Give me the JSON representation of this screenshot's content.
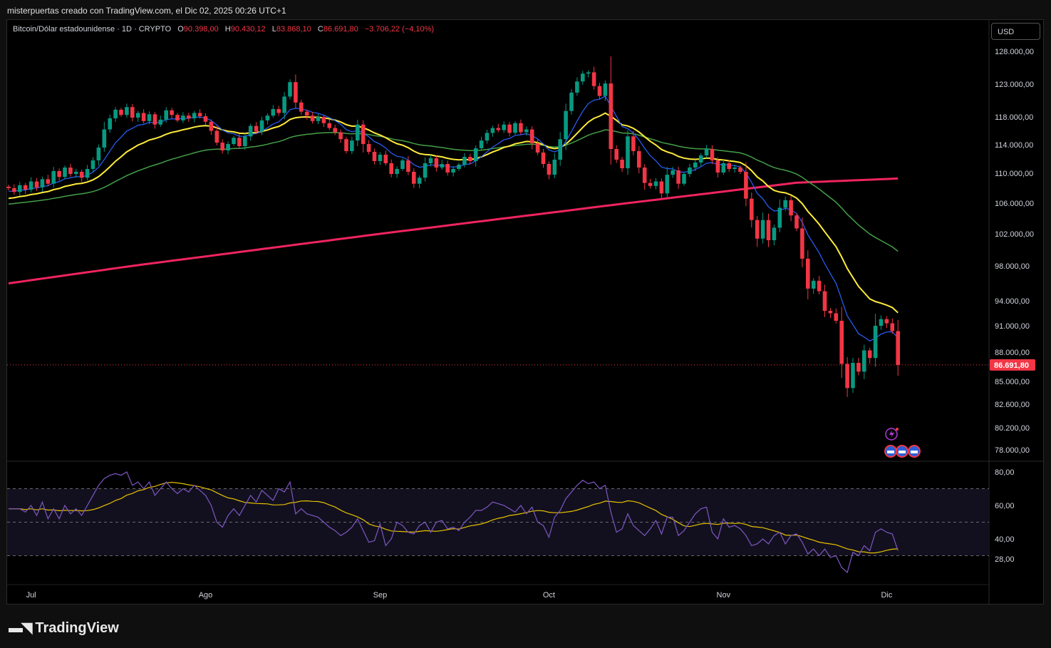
{
  "header": {
    "attribution": "misterpuertas creado con TradingView.com, el Dic 02, 2025 00:26 UTC+1"
  },
  "legend": {
    "symbol": "Bitcoin/Dólar estadounidense · 1D · CRYPTO",
    "o_label": "O",
    "o_value": "90.398,00",
    "h_label": "H",
    "h_value": "90.430,12",
    "l_label": "L",
    "l_value": "83.868,10",
    "c_label": "C",
    "c_value": "86.691,80",
    "change": "−3.706,22 (−4,10%)"
  },
  "currency_button": "USD",
  "brand": {
    "name": "TradingView",
    "logo_icon": "tradingview-logo-icon"
  },
  "colors": {
    "up": "#089981",
    "down": "#f23645",
    "ema_fast": "#2962ff",
    "ema_mid": "#ffeb3b",
    "ema_slow": "#43a047",
    "ema_200": "#f0245f",
    "rsi": "#7e57c2",
    "rsi_ma": "#e6c000"
  },
  "chart_data": [
    {
      "type": "candlestick",
      "title": "Bitcoin/Dólar estadounidense · 1D · CRYPTO",
      "price_axis_ticks": [
        "128.000,00",
        "123.000,00",
        "118.000,00",
        "114.000,00",
        "110.000,00",
        "106.000,00",
        "102.000,00",
        "98.000,00",
        "94.000,00",
        "91.000,00",
        "88.000,00",
        "85.000,00",
        "82.600,00",
        "80.200,00",
        "78.000,00"
      ],
      "price_tick_values": [
        128000,
        123000,
        118000,
        114000,
        110000,
        106000,
        102000,
        98000,
        94000,
        91000,
        88000,
        85000,
        82600,
        80200,
        78000
      ],
      "time_axis_ticks": [
        "Jul",
        "Ago",
        "Sep",
        "Oct",
        "Nov",
        "Dic"
      ],
      "time_tick_index": [
        4,
        35,
        66,
        96,
        127,
        156
      ],
      "last_price_label": "86.691,80",
      "last_price": 86691.8,
      "closes": [
        108000,
        107500,
        108400,
        107800,
        108900,
        108100,
        109200,
        108600,
        110300,
        109500,
        110800,
        109900,
        110200,
        109400,
        110600,
        111800,
        113600,
        116200,
        117800,
        119100,
        118300,
        119500,
        117900,
        118600,
        117400,
        118400,
        116900,
        117600,
        119000,
        118300,
        117500,
        118200,
        117800,
        118600,
        118100,
        117300,
        116000,
        114300,
        113200,
        114100,
        115000,
        113800,
        115200,
        116700,
        115900,
        117500,
        118200,
        119200,
        118600,
        121100,
        123300,
        120200,
        118800,
        118200,
        117400,
        118000,
        117100,
        116400,
        115800,
        114800,
        113100,
        114600,
        116900,
        114100,
        113000,
        111700,
        112600,
        111400,
        109900,
        110600,
        111800,
        110200,
        108600,
        109400,
        111400,
        112100,
        110800,
        111300,
        110100,
        110600,
        111200,
        112300,
        111700,
        113500,
        114600,
        115700,
        116400,
        116100,
        116900,
        115700,
        117100,
        115800,
        116200,
        114200,
        112900,
        111300,
        109800,
        111900,
        114800,
        118900,
        121700,
        123400,
        124600,
        124800,
        122700,
        121200,
        123100,
        113400,
        111900,
        110700,
        115200,
        113100,
        110800,
        108700,
        108300,
        108900,
        107300,
        109800,
        110400,
        108600,
        109900,
        110800,
        111500,
        112500,
        113400,
        111800,
        110100,
        111400,
        110600,
        110800,
        110200,
        106600,
        103800,
        101400,
        103800,
        101200,
        102800,
        105400,
        106400,
        104400,
        102700,
        98900,
        95400,
        96300,
        95100,
        92800,
        92500,
        91600,
        86800,
        84300,
        86900,
        86000,
        88200,
        87400,
        91000,
        91800,
        91300,
        90398,
        86691.8
      ],
      "indicators": [
        "EMA fast (blue)",
        "EMA 20 (yellow)",
        "EMA 50 (green)",
        "EMA 200 (red)"
      ]
    },
    {
      "type": "line",
      "title": "RSI",
      "axis_ticks": [
        "80,00",
        "60,00",
        "40,00",
        "28,00"
      ],
      "axis_tick_values": [
        80,
        60,
        40,
        28
      ],
      "bands": [
        70,
        50,
        30
      ],
      "series": [
        {
          "values": [
            58,
            58,
            58,
            56,
            60,
            54,
            62,
            52,
            58,
            52,
            60,
            55,
            58,
            54,
            60,
            66,
            72,
            76,
            78,
            79,
            78,
            80,
            72,
            74,
            70,
            74,
            66,
            70,
            74,
            70,
            67,
            70,
            68,
            72,
            69,
            66,
            60,
            50,
            47,
            54,
            58,
            54,
            60,
            66,
            62,
            69,
            66,
            63,
            70,
            68,
            74,
            55,
            58,
            55,
            54,
            53,
            50,
            47,
            45,
            42,
            44,
            47,
            52,
            45,
            38,
            39,
            49,
            36,
            40,
            50,
            48,
            44,
            43,
            48,
            50,
            44,
            50,
            51,
            46,
            47,
            45,
            50,
            53,
            57,
            57,
            59,
            62,
            61,
            60,
            58,
            56,
            60,
            55,
            59,
            50,
            48,
            41,
            53,
            57,
            64,
            68,
            72,
            75,
            73,
            74,
            70,
            72,
            56,
            44,
            46,
            55,
            48,
            45,
            42,
            46,
            51,
            43,
            53,
            53,
            42,
            45,
            50,
            55,
            58,
            59,
            44,
            40,
            52,
            47,
            48,
            46,
            42,
            36,
            37,
            40,
            37,
            42,
            44,
            37,
            42,
            43,
            38,
            31,
            34,
            30,
            34,
            29,
            30,
            23,
            20,
            32,
            30,
            36,
            33,
            44,
            46,
            44,
            43,
            33
          ]
        }
      ]
    }
  ]
}
